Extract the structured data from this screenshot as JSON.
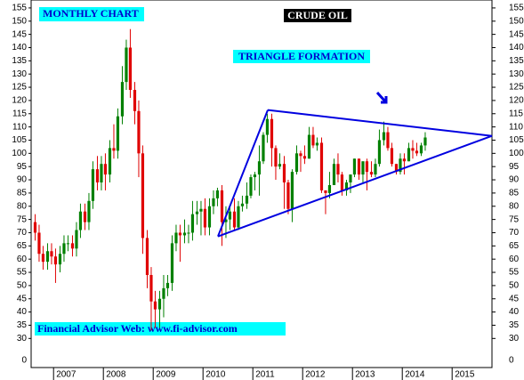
{
  "chart_data": {
    "type": "candlestick",
    "title": "CRUDE OIL",
    "subtitle": "MONTHLY CHART",
    "annotations": [
      "TRIANGLE FORMATION",
      "Financial Advisor Web: www.fi-advisor.com"
    ],
    "x": [
      2006.63,
      2006.71,
      2006.79,
      2006.88,
      2006.96,
      2007.04,
      2007.13,
      2007.21,
      2007.29,
      2007.38,
      2007.46,
      2007.54,
      2007.63,
      2007.71,
      2007.79,
      2007.88,
      2007.96,
      2008.04,
      2008.13,
      2008.21,
      2008.29,
      2008.38,
      2008.46,
      2008.54,
      2008.63,
      2008.71,
      2008.79,
      2008.88,
      2008.96,
      2009.04,
      2009.13,
      2009.21,
      2009.29,
      2009.38,
      2009.46,
      2009.54,
      2009.63,
      2009.71,
      2009.79,
      2009.88,
      2009.96,
      2010.04,
      2010.13,
      2010.21,
      2010.29,
      2010.38,
      2010.46,
      2010.54,
      2010.63,
      2010.71,
      2010.79,
      2010.88,
      2010.96,
      2011.04,
      2011.13,
      2011.21,
      2011.29,
      2011.38,
      2011.46,
      2011.54,
      2011.63,
      2011.71,
      2011.79,
      2011.88,
      2011.96,
      2012.04,
      2012.13,
      2012.21,
      2012.29,
      2012.38,
      2012.46,
      2012.54,
      2012.63,
      2012.71,
      2012.79,
      2012.88,
      2012.96,
      2013.04,
      2013.13,
      2013.21,
      2013.29,
      2013.38,
      2013.46,
      2013.54,
      2013.63,
      2013.71,
      2013.79,
      2013.88,
      2013.96,
      2014.04,
      2014.13,
      2014.21,
      2014.29,
      2014.38,
      2014.46
    ],
    "open": [
      74,
      70,
      62,
      59,
      63,
      61,
      58,
      62,
      66,
      66,
      64,
      71,
      78,
      74,
      82,
      94,
      89,
      96,
      92,
      102,
      101,
      114,
      127,
      140,
      124,
      116,
      100,
      68,
      54,
      44,
      41,
      45,
      49,
      51,
      66,
      70,
      69,
      70,
      70,
      77,
      78,
      79,
      72,
      80,
      83,
      86,
      74,
      75,
      78,
      72,
      80,
      81,
      84,
      91,
      92,
      97,
      107,
      113,
      102,
      95,
      96,
      89,
      79,
      93,
      100,
      99,
      98,
      107,
      103,
      104,
      86,
      85,
      88,
      96,
      92,
      86,
      89,
      92,
      98,
      92,
      97,
      93,
      92,
      96,
      105,
      108,
      102,
      96,
      93,
      98,
      97,
      102,
      101,
      100,
      103
    ],
    "high": [
      77,
      73,
      65,
      66,
      66,
      64,
      65,
      69,
      69,
      69,
      74,
      81,
      81,
      85,
      97,
      99,
      99,
      100,
      105,
      111,
      117,
      133,
      143,
      147,
      127,
      120,
      103,
      71,
      57,
      48,
      48,
      54,
      54,
      69,
      73,
      73,
      75,
      73,
      82,
      82,
      82,
      83,
      83,
      86,
      87,
      88,
      80,
      80,
      83,
      82,
      84,
      89,
      92,
      93,
      103,
      108,
      115,
      115,
      103,
      100,
      99,
      90,
      94,
      103,
      101,
      103,
      110,
      110,
      106,
      106,
      86,
      93,
      98,
      100,
      93,
      90,
      92,
      98,
      98,
      97,
      98,
      97,
      98,
      109,
      112,
      110,
      104,
      96,
      100,
      100,
      104,
      105,
      104,
      104,
      108
    ],
    "low": [
      67,
      59,
      56,
      56,
      58,
      51,
      55,
      59,
      63,
      61,
      61,
      68,
      71,
      71,
      79,
      86,
      86,
      86,
      89,
      98,
      98,
      111,
      124,
      121,
      111,
      91,
      62,
      49,
      33,
      34,
      34,
      38,
      46,
      48,
      63,
      59,
      66,
      66,
      67,
      73,
      69,
      69,
      69,
      77,
      80,
      65,
      68,
      71,
      71,
      71,
      78,
      79,
      83,
      86,
      84,
      96,
      104,
      95,
      90,
      94,
      79,
      77,
      74,
      92,
      93,
      96,
      98,
      102,
      101,
      85,
      77,
      83,
      88,
      89,
      84,
      84,
      85,
      91,
      90,
      89,
      86,
      91,
      91,
      95,
      103,
      101,
      95,
      92,
      92,
      92,
      97,
      98,
      99,
      99,
      101
    ],
    "close": [
      70,
      62,
      59,
      63,
      61,
      58,
      62,
      66,
      66,
      64,
      71,
      78,
      74,
      82,
      94,
      89,
      96,
      92,
      102,
      101,
      114,
      127,
      140,
      124,
      116,
      100,
      68,
      54,
      44,
      41,
      45,
      49,
      51,
      66,
      70,
      69,
      70,
      70,
      77,
      78,
      79,
      72,
      80,
      83,
      86,
      74,
      75,
      78,
      72,
      80,
      81,
      84,
      91,
      92,
      97,
      107,
      113,
      102,
      95,
      96,
      89,
      79,
      93,
      100,
      99,
      98,
      107,
      103,
      104,
      86,
      85,
      88,
      96,
      92,
      86,
      89,
      92,
      98,
      92,
      97,
      93,
      92,
      96,
      105,
      108,
      102,
      96,
      93,
      98,
      97,
      102,
      101,
      100,
      103,
      106
    ],
    "up_color": "#008000",
    "down_color": "#e00000",
    "trendlines": [
      {
        "x": [
          2010.3,
          2011.3
        ],
        "y": [
          68.6,
          116.4
        ]
      },
      {
        "x": [
          2011.3,
          2015.8
        ],
        "y": [
          116.4,
          106.6
        ]
      },
      {
        "x": [
          2010.3,
          2015.8
        ],
        "y": [
          68.6,
          106.6
        ]
      }
    ],
    "trendline_color": "#0000e0",
    "xlim": [
      2006.55,
      2015.8
    ],
    "xticks": [
      2007,
      2008,
      2009,
      2010,
      2011,
      2012,
      2013,
      2014,
      2015
    ],
    "ylim": [
      19,
      158
    ],
    "yticks": [
      30,
      35,
      40,
      45,
      50,
      55,
      60,
      65,
      70,
      75,
      80,
      85,
      90,
      95,
      100,
      105,
      110,
      115,
      120,
      125,
      130,
      135,
      140,
      145,
      150,
      155
    ],
    "y_break_label": "0"
  }
}
